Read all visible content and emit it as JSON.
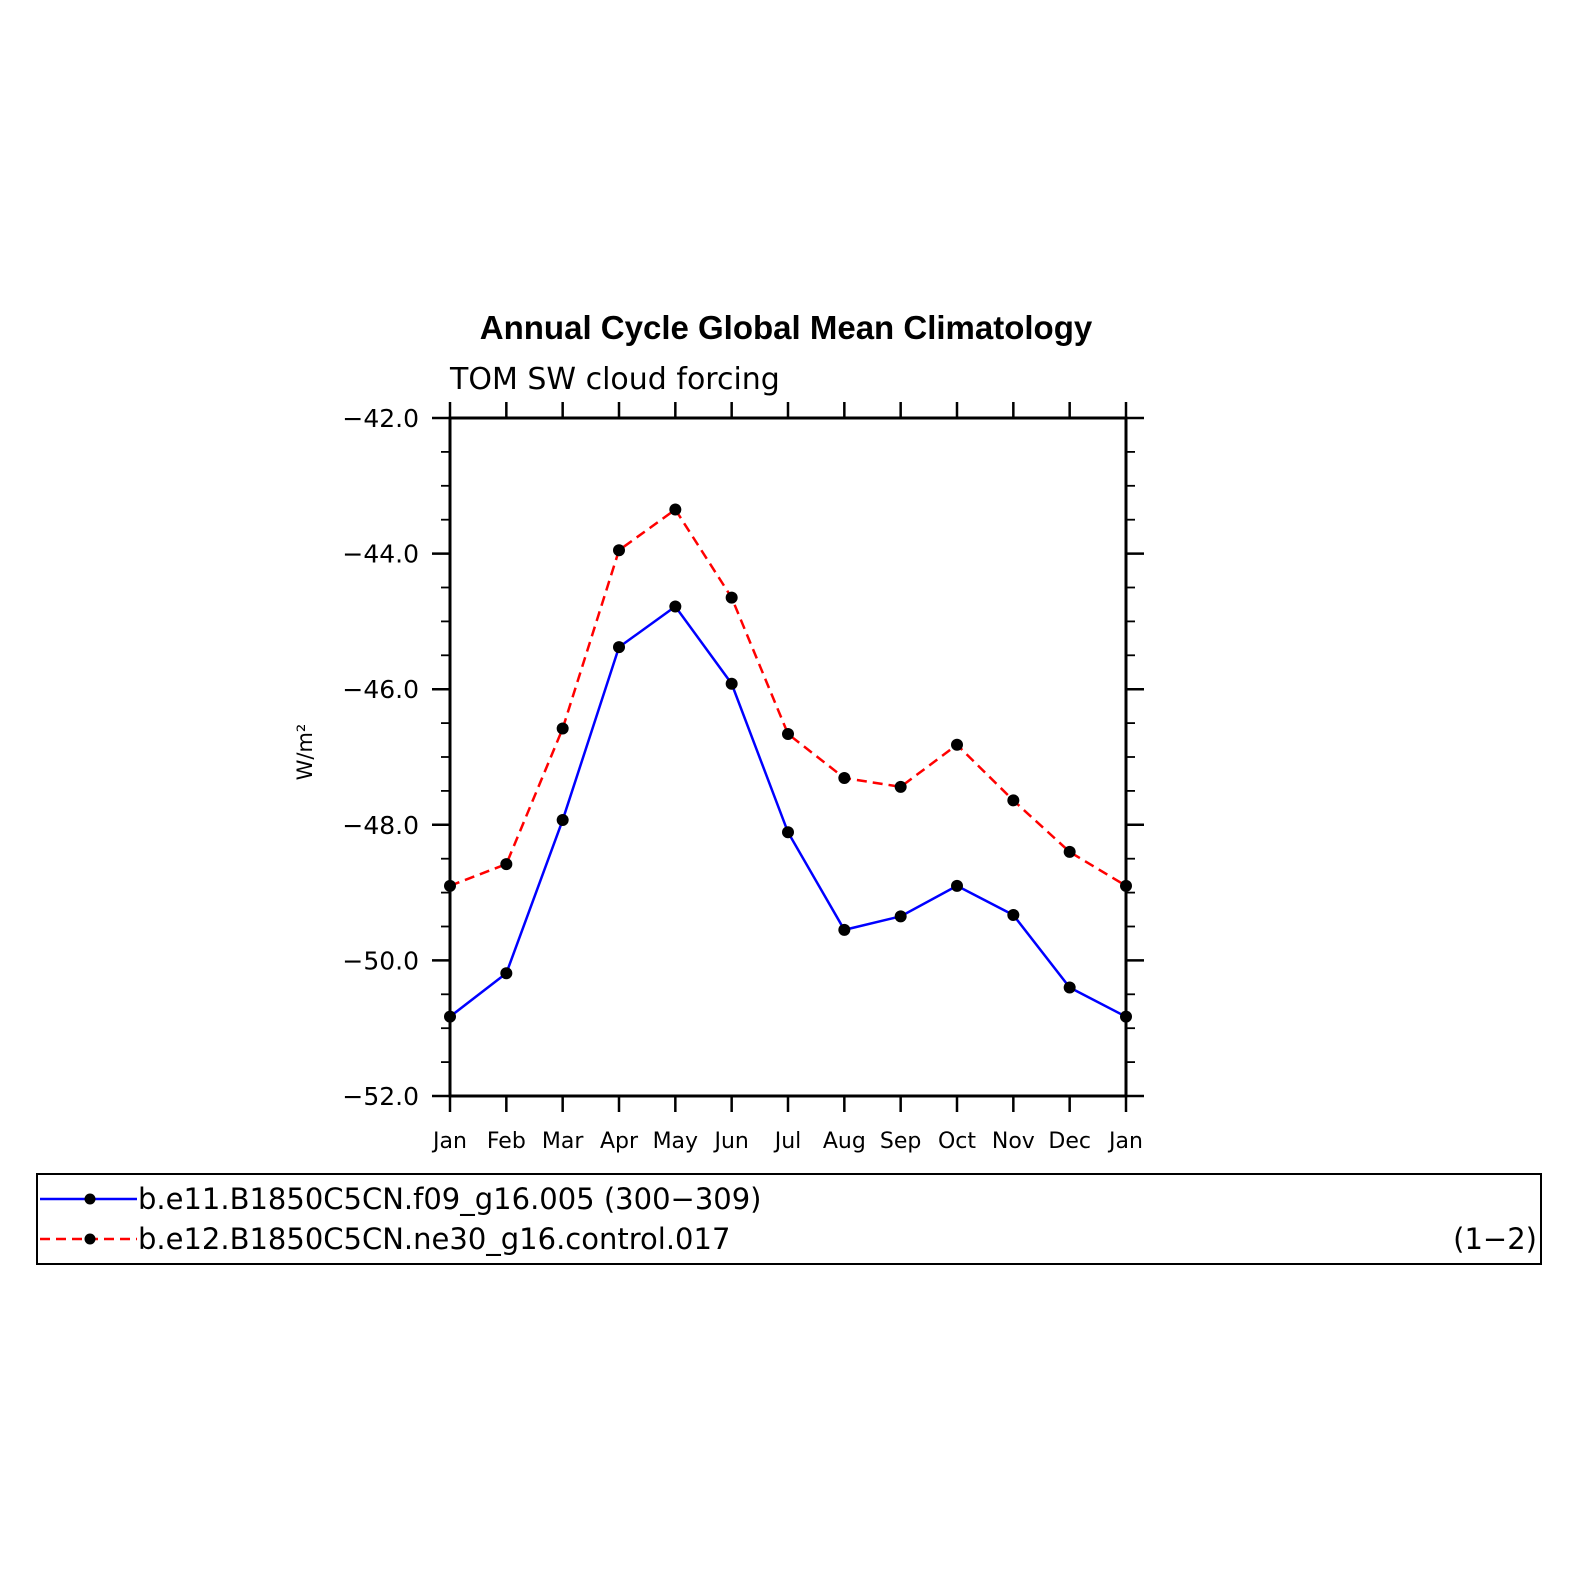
{
  "chart_data": {
    "type": "line",
    "title": "Annual Cycle Global Mean Climatology",
    "subtitle": "TOM SW cloud forcing",
    "ylabel": "W/m²",
    "xlabel": "",
    "categories": [
      "Jan",
      "Feb",
      "Mar",
      "Apr",
      "May",
      "Jun",
      "Jul",
      "Aug",
      "Sep",
      "Oct",
      "Nov",
      "Dec",
      "Jan"
    ],
    "ylim": [
      -52.0,
      -42.0
    ],
    "yticks": [
      -52.0,
      -50.0,
      -48.0,
      -46.0,
      -44.0,
      -42.0
    ],
    "ytick_labels": [
      "−52.0",
      "−50.0",
      "−48.0",
      "−46.0",
      "−44.0",
      "−42.0"
    ],
    "series": [
      {
        "name": "b.e11.B1850C5CN.f09_g16.005 (300−309)",
        "color": "#0000ff",
        "dashed": false,
        "values": [
          -50.83,
          -50.19,
          -47.93,
          -45.38,
          -44.78,
          -45.92,
          -48.11,
          -49.55,
          -49.35,
          -48.9,
          -49.33,
          -50.4,
          -50.83
        ]
      },
      {
        "name": "b.e12.B1850C5CN.ne30_g16.control.017",
        "color": "#ff0000",
        "dashed": true,
        "values": [
          -48.9,
          -48.58,
          -46.58,
          -43.95,
          -43.35,
          -44.65,
          -46.66,
          -47.31,
          -47.44,
          -46.82,
          -47.64,
          -48.4,
          -48.9
        ]
      }
    ],
    "legend": {
      "placement": "bottom",
      "entries": [
        "b.e11.B1850C5CN.f09_g16.005 (300−309)",
        "b.e12.B1850C5CN.ne30_g16.control.017"
      ],
      "note": "(1−2)"
    }
  }
}
